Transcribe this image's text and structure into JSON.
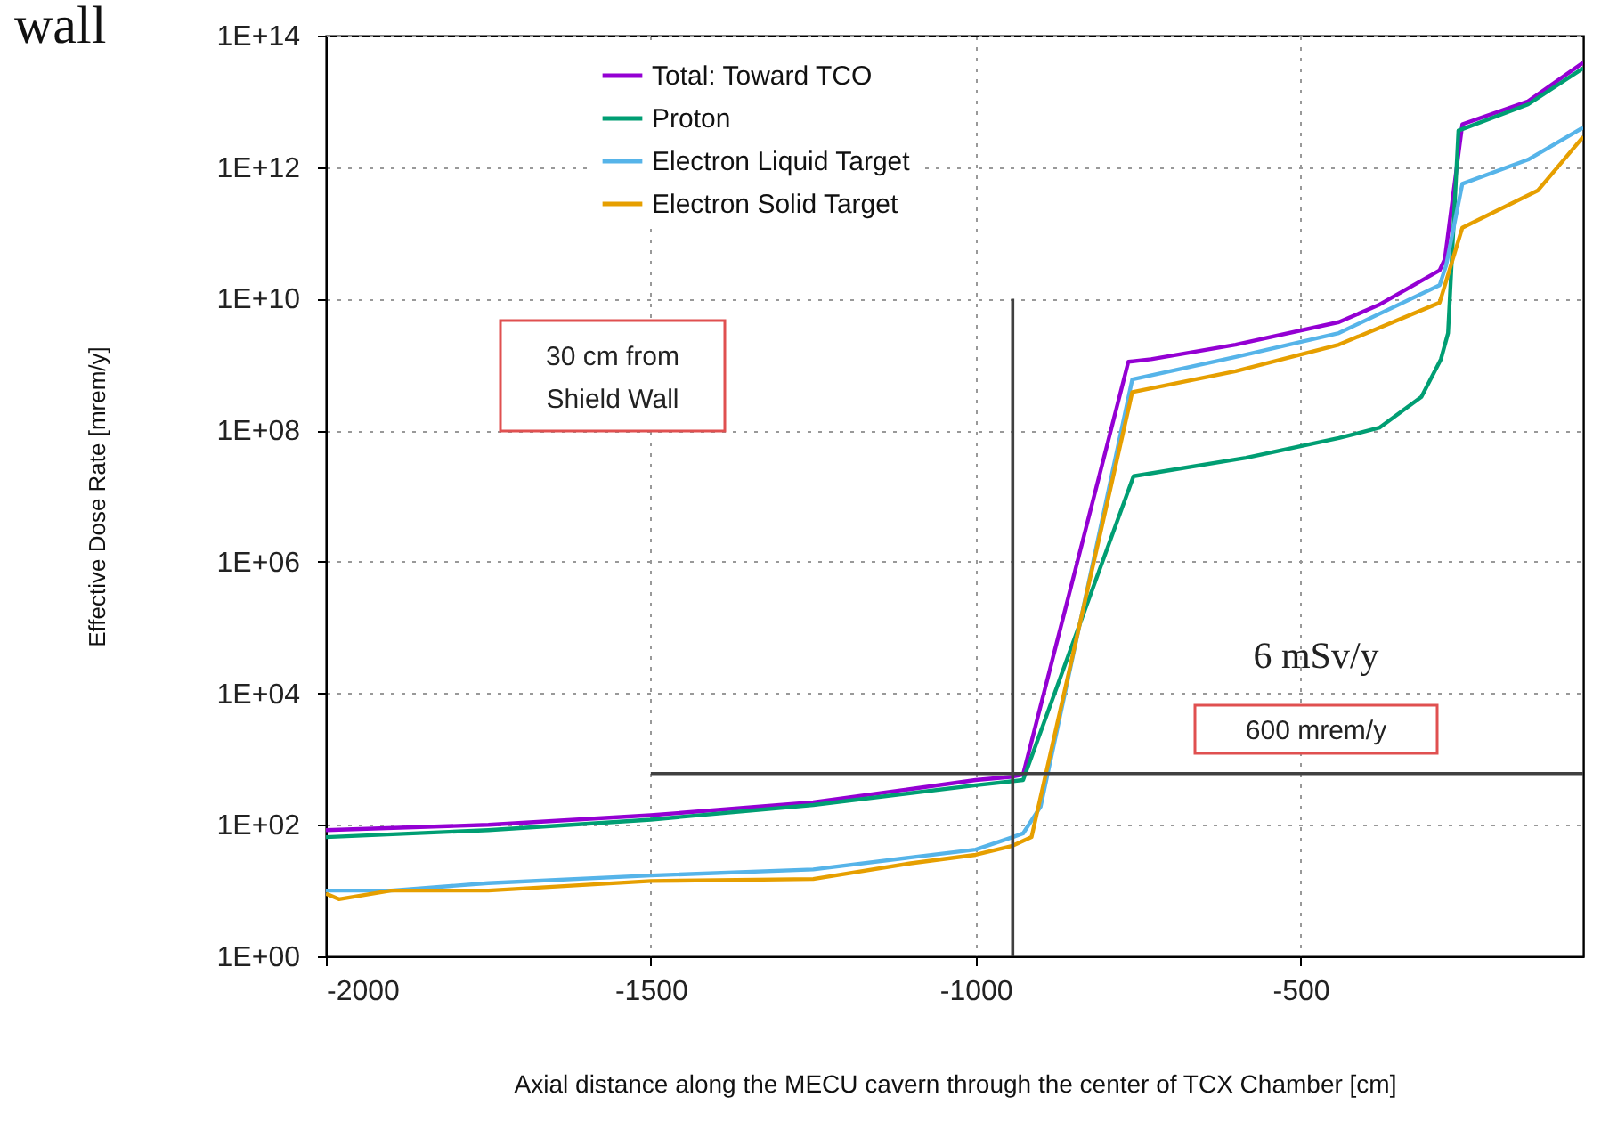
{
  "chart_data": {
    "type": "line",
    "xlabel": "Axial distance along the MECU cavern through the center of TCX Chamber [cm]",
    "ylabel": "Effective Dose Rate [mrem/y]",
    "annotations": [
      "wall",
      "30 cm from\nShield Wall",
      "6 mSv/y",
      "600 mrem/y"
    ],
    "log": true,
    "grid": true,
    "legend": "top",
    "xlim": [
      -2000,
      -65
    ],
    "xticks": [
      -2000,
      -1500,
      -1000,
      -500
    ],
    "ylim": [
      1,
      100000000000000
    ],
    "yticks": [
      {
        "value": 1,
        "label": "1E+00"
      },
      {
        "value": 100,
        "label": "1E+02"
      },
      {
        "value": 10000,
        "label": "1E+04"
      },
      {
        "value": 1000000,
        "label": "1E+06"
      },
      {
        "value": 100000000,
        "label": "1E+08"
      },
      {
        "value": 10000000000,
        "label": "1E+10"
      },
      {
        "value": 1000000000000,
        "label": "1E+12"
      },
      {
        "value": 100000000000000,
        "label": "1E+14"
      }
    ],
    "series": [
      {
        "name": "Total: Toward TCO",
        "color": "#9400d3",
        "x": [
          -2000,
          -1750,
          -1500,
          -1250,
          -1000,
          -943,
          -927,
          -765,
          -730,
          -600,
          -441,
          -380,
          -286,
          -278,
          -251,
          -150,
          -65
        ],
        "values": [
          83,
          100,
          140,
          220,
          480,
          540,
          580,
          1100000000,
          1200000000,
          2000000000,
          4400000000,
          8000000000,
          27000000000,
          40000000000,
          4500000000000,
          10000000000000,
          39000000000000
        ]
      },
      {
        "name": "Proton",
        "color": "#009e73",
        "x": [
          -2000,
          -1750,
          -1500,
          -1250,
          -1000,
          -927,
          -757,
          -584,
          -441,
          -378,
          -314,
          -284,
          -273,
          -257,
          -150,
          -65
        ],
        "values": [
          65,
          83,
          120,
          200,
          400,
          480,
          20000000,
          38000000,
          76000000,
          110000000,
          320000000,
          1200000000,
          3000000000,
          3600000000000,
          9000000000000,
          32000000000000
        ]
      },
      {
        "name": "Electron Liquid Target",
        "color": "#56b4e9",
        "x": [
          -2000,
          -1900,
          -1750,
          -1500,
          -1250,
          -1100,
          -1000,
          -943,
          -927,
          -900,
          -759,
          -600,
          -441,
          -286,
          -276,
          -251,
          -150,
          -65
        ],
        "values": [
          10,
          10,
          13,
          17,
          21,
          32,
          42,
          65,
          74,
          190,
          590000000,
          1300000000,
          3000000000,
          16000000000,
          32000000000,
          560000000000,
          1300000000000,
          4000000000000
        ]
      },
      {
        "name": "Electron Solid Target",
        "color": "#e69f00",
        "x": [
          -2000,
          -1980,
          -1900,
          -1750,
          -1500,
          -1250,
          -1100,
          -1000,
          -943,
          -914,
          -759,
          -600,
          -441,
          -286,
          -251,
          -135,
          -65
        ],
        "values": [
          9,
          7.4,
          10,
          10,
          14,
          15,
          26,
          35,
          48,
          65,
          380000000,
          790000000,
          2000000000,
          8700000000,
          120000000000,
          440000000000,
          2900000000000
        ]
      },
      {
        "color": "#404040",
        "x": [
          -943,
          -943
        ],
        "values": [
          1,
          10000000000
        ]
      },
      {
        "color": "#404040",
        "x": [
          -1500,
          -65
        ],
        "values": [
          600,
          600
        ]
      }
    ]
  }
}
